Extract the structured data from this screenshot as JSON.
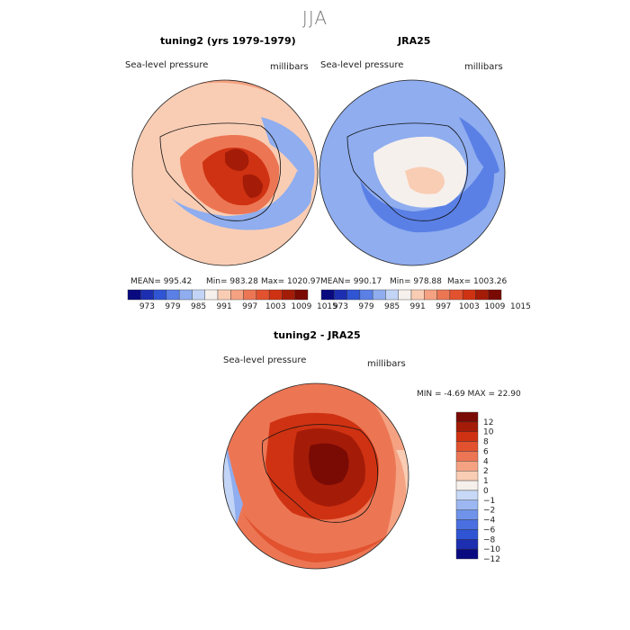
{
  "season": "JJA",
  "panels": [
    {
      "title": "tuning2 (yrs 1979-1979)",
      "var_label": "Sea-level pressure",
      "units": "millibars",
      "mean_text": "MEAN= 995.42",
      "min_text": "Min= 983.28",
      "max_text": "Max= 1020.97"
    },
    {
      "title": "JRA25",
      "var_label": "Sea-level pressure",
      "units": "millibars",
      "mean_text": "MEAN= 990.17",
      "min_text": "Min= 978.88",
      "max_text": "Max= 1003.26"
    },
    {
      "title": "tuning2 - JRA25",
      "var_label": "Sea-level pressure",
      "units": "millibars",
      "minmax_text": "MIN =  -4.69 MAX =  22.90"
    }
  ],
  "abs_colorbar": {
    "colors": [
      "#0a0a80",
      "#1c2fb0",
      "#2f55d4",
      "#5a80e6",
      "#8fadef",
      "#c3d5f6",
      "#f6f0ec",
      "#f9cdb4",
      "#f5a282",
      "#ec7654",
      "#e2522f",
      "#cf3212",
      "#a41c08",
      "#7a0a04"
    ],
    "labels": [
      "973",
      "979",
      "985",
      "991",
      "997",
      "1003",
      "1009",
      "1015"
    ]
  },
  "diff_colorbar": {
    "colors": [
      "#0a0a80",
      "#1c2fb0",
      "#2f55d4",
      "#4a6fe0",
      "#6f93ea",
      "#9cb7f2",
      "#c8d9f7",
      "#f6f0ec",
      "#f9cdb4",
      "#f5a282",
      "#ec7654",
      "#e2522f",
      "#cf3212",
      "#a41c08",
      "#7a0a04"
    ],
    "labels": [
      "12",
      "10",
      "8",
      "6",
      "4",
      "2",
      "1",
      "0",
      "−1",
      "−2",
      "−4",
      "−6",
      "−8",
      "−10",
      "−12"
    ]
  },
  "chart_data": [
    {
      "type": "heatmap",
      "title": "tuning2 (yrs 1979-1979)",
      "variable": "Sea-level pressure",
      "units": "millibars",
      "projection": "south polar stereographic",
      "mean": 995.42,
      "min": 983.28,
      "max": 1020.97,
      "levels": [
        973,
        979,
        985,
        991,
        997,
        1003,
        1009,
        1015
      ]
    },
    {
      "type": "heatmap",
      "title": "JRA25",
      "variable": "Sea-level pressure",
      "units": "millibars",
      "projection": "south polar stereographic",
      "mean": 990.17,
      "min": 978.88,
      "max": 1003.26,
      "levels": [
        973,
        979,
        985,
        991,
        997,
        1003,
        1009,
        1015
      ]
    },
    {
      "type": "heatmap",
      "title": "tuning2 - JRA25",
      "variable": "Sea-level pressure",
      "units": "millibars",
      "projection": "south polar stereographic",
      "min": -4.69,
      "max": 22.9,
      "levels": [
        -12,
        -10,
        -8,
        -6,
        -4,
        -2,
        -1,
        0,
        1,
        2,
        4,
        6,
        8,
        10,
        12
      ]
    }
  ]
}
